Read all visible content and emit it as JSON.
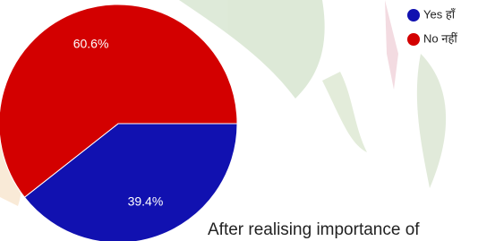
{
  "chart_data": {
    "type": "pie",
    "categories": [
      "Yes हाँ",
      "No नहीं"
    ],
    "values": [
      39.4,
      60.6
    ],
    "value_labels": [
      "39.4%",
      "60.6%"
    ],
    "colors": [
      "#1111b0",
      "#d30000"
    ],
    "caption": "After realising importance of"
  }
}
